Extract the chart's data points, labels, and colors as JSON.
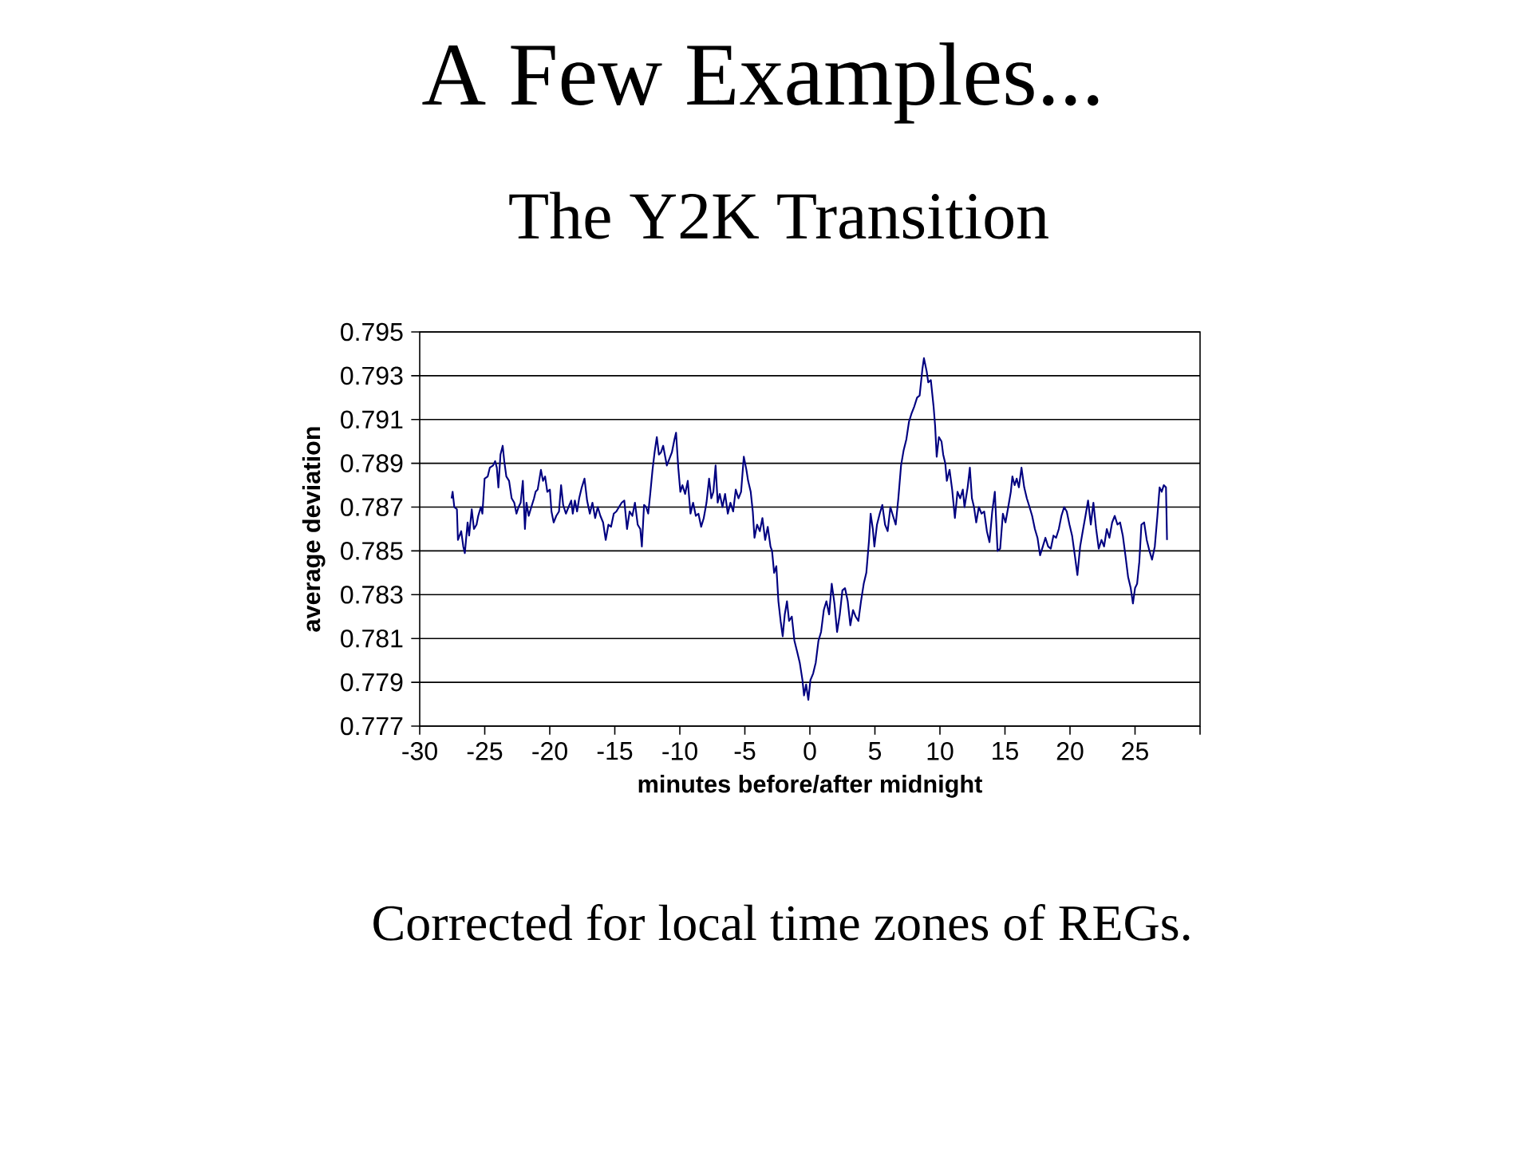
{
  "chart_data": {
    "type": "line",
    "title": "A Few Examples...",
    "subtitle": "The Y2K Transition",
    "xlabel": "minutes before/after midnight",
    "ylabel": "average deviation",
    "annotations": [
      "Corrected for local time zones of REGs."
    ],
    "color": "#000080",
    "grid": "y",
    "xlim": [
      -30,
      30
    ],
    "xticks": [
      -30,
      -25,
      -20,
      -15,
      -10,
      -5,
      0,
      5,
      10,
      15,
      20,
      25,
      {
        "value": 30,
        "label": null
      }
    ],
    "ylim": [
      0.777,
      0.795
    ],
    "yticks": [
      0.777,
      0.779,
      0.781,
      0.783,
      0.785,
      0.787,
      0.789,
      0.791,
      0.793,
      0.795
    ],
    "x": [
      -27.55,
      -27.47,
      -27.34,
      -27.14,
      -27.06,
      -26.81,
      -26.65,
      -26.53,
      -26.32,
      -26.2,
      -26.0,
      -25.83,
      -25.63,
      -25.5,
      -25.3,
      -25.18,
      -25.01,
      -24.77,
      -24.61,
      -24.36,
      -24.2,
      -24.07,
      -23.95,
      -23.79,
      -23.62,
      -23.5,
      -23.34,
      -23.13,
      -22.93,
      -22.73,
      -22.56,
      -22.4,
      -22.24,
      -22.07,
      -21.91,
      -21.79,
      -21.62,
      -21.42,
      -21.21,
      -21.09,
      -20.93,
      -20.68,
      -20.52,
      -20.36,
      -20.19,
      -19.99,
      -19.87,
      -19.7,
      -19.5,
      -19.29,
      -19.13,
      -18.97,
      -18.76,
      -18.56,
      -18.35,
      -18.23,
      -18.07,
      -17.9,
      -17.74,
      -17.54,
      -17.33,
      -17.13,
      -16.92,
      -16.72,
      -16.51,
      -16.31,
      -16.11,
      -15.9,
      -15.7,
      -15.49,
      -15.29,
      -15.08,
      -14.88,
      -14.68,
      -14.47,
      -14.27,
      -14.06,
      -13.86,
      -13.65,
      -13.45,
      -13.24,
      -13.04,
      -12.92,
      -12.75,
      -12.59,
      -12.43,
      -12.26,
      -12.1,
      -11.94,
      -11.77,
      -11.61,
      -11.45,
      -11.28,
      -11.0,
      -10.61,
      -10.41,
      -10.29,
      -10.12,
      -9.96,
      -9.8,
      -9.59,
      -9.39,
      -9.18,
      -8.98,
      -8.77,
      -8.57,
      -8.36,
      -8.16,
      -7.95,
      -7.75,
      -7.58,
      -7.42,
      -7.25,
      -7.09,
      -6.93,
      -6.72,
      -6.52,
      -6.31,
      -6.11,
      -5.9,
      -5.7,
      -5.49,
      -5.29,
      -5.08,
      -4.88,
      -4.75,
      -4.55,
      -4.39,
      -4.26,
      -4.06,
      -3.85,
      -3.65,
      -3.44,
      -3.24,
      -3.03,
      -2.91,
      -2.75,
      -2.58,
      -2.42,
      -2.25,
      -2.09,
      -1.93,
      -1.76,
      -1.6,
      -1.39,
      -1.19,
      -0.98,
      -0.78,
      -0.57,
      -0.45,
      -0.29,
      -0.12,
      0.04,
      0.25,
      0.45,
      0.66,
      0.86,
      1.07,
      1.27,
      1.48,
      1.68,
      1.89,
      2.09,
      2.3,
      2.5,
      2.7,
      2.91,
      3.11,
      3.32,
      3.52,
      3.73,
      3.93,
      4.14,
      4.34,
      4.55,
      4.67,
      4.84,
      4.96,
      5.16,
      5.37,
      5.57,
      5.78,
      5.98,
      6.19,
      6.39,
      6.6,
      6.8,
      7.01,
      7.21,
      7.42,
      7.62,
      7.83,
      8.03,
      8.24,
      8.44,
      8.65,
      8.77,
      8.98,
      9.1,
      9.3,
      9.51,
      9.63,
      9.75,
      9.92,
      10.12,
      10.25,
      10.41,
      10.53,
      10.74,
      10.94,
      11.15,
      11.35,
      11.56,
      11.76,
      11.89,
      12.13,
      12.3,
      12.46,
      12.62,
      12.79,
      12.99,
      13.2,
      13.4,
      13.61,
      13.81,
      14.02,
      14.22,
      14.43,
      14.63,
      14.84,
      15.04,
      15.25,
      15.45,
      15.57,
      15.74,
      15.9,
      16.07,
      16.27,
      16.48,
      16.68,
      16.89,
      17.09,
      17.3,
      17.5,
      17.7,
      17.91,
      18.11,
      18.32,
      18.52,
      18.73,
      18.93,
      19.14,
      19.34,
      19.55,
      19.75,
      19.96,
      20.16,
      20.37,
      20.57,
      20.78,
      20.98,
      21.19,
      21.39,
      21.6,
      21.8,
      22.01,
      22.21,
      22.42,
      22.62,
      22.83,
      23.03,
      23.24,
      23.44,
      23.65,
      23.85,
      24.06,
      24.26,
      24.47,
      24.67,
      24.84,
      25.0,
      25.16,
      25.33,
      25.49,
      25.7,
      25.9,
      26.11,
      26.31,
      26.52,
      26.72,
      26.89,
      27.05,
      27.21,
      27.38,
      27.46
    ],
    "values": [
      0.7874,
      0.7877,
      0.787,
      0.7869,
      0.7855,
      0.7859,
      0.7852,
      0.7849,
      0.7863,
      0.7857,
      0.7869,
      0.786,
      0.7862,
      0.7866,
      0.787,
      0.7867,
      0.7883,
      0.7884,
      0.7888,
      0.7889,
      0.7891,
      0.7888,
      0.7879,
      0.7894,
      0.7898,
      0.7891,
      0.7884,
      0.7882,
      0.7874,
      0.7872,
      0.7867,
      0.787,
      0.7872,
      0.7882,
      0.786,
      0.7872,
      0.7866,
      0.787,
      0.7874,
      0.7877,
      0.7878,
      0.7887,
      0.7882,
      0.7884,
      0.7877,
      0.7878,
      0.7868,
      0.7863,
      0.7866,
      0.7868,
      0.788,
      0.7871,
      0.7867,
      0.787,
      0.7873,
      0.7867,
      0.7873,
      0.7868,
      0.7874,
      0.7879,
      0.7883,
      0.7873,
      0.7867,
      0.7872,
      0.7865,
      0.787,
      0.7866,
      0.7863,
      0.7855,
      0.7862,
      0.7861,
      0.7867,
      0.7868,
      0.787,
      0.7872,
      0.7873,
      0.786,
      0.7868,
      0.7866,
      0.7872,
      0.7862,
      0.786,
      0.7852,
      0.7871,
      0.787,
      0.7867,
      0.7877,
      0.7887,
      0.7895,
      0.7902,
      0.7894,
      0.7895,
      0.7898,
      0.7889,
      0.7895,
      0.7901,
      0.7904,
      0.7888,
      0.7877,
      0.788,
      0.7876,
      0.7882,
      0.7867,
      0.7872,
      0.7866,
      0.7867,
      0.7861,
      0.7865,
      0.7872,
      0.7883,
      0.7874,
      0.7877,
      0.7889,
      0.7872,
      0.7876,
      0.787,
      0.7876,
      0.7867,
      0.7872,
      0.7868,
      0.7878,
      0.7874,
      0.7877,
      0.7893,
      0.7887,
      0.7882,
      0.7877,
      0.7868,
      0.7856,
      0.7862,
      0.7859,
      0.7865,
      0.7855,
      0.7861,
      0.7852,
      0.785,
      0.784,
      0.7843,
      0.7827,
      0.7818,
      0.7811,
      0.7821,
      0.7827,
      0.7818,
      0.782,
      0.7809,
      0.7804,
      0.7799,
      0.7791,
      0.7784,
      0.7789,
      0.7782,
      0.7791,
      0.7794,
      0.7799,
      0.7809,
      0.7813,
      0.7823,
      0.7827,
      0.7821,
      0.7835,
      0.7826,
      0.7813,
      0.7821,
      0.7832,
      0.7833,
      0.7827,
      0.7816,
      0.7823,
      0.782,
      0.7818,
      0.7827,
      0.7835,
      0.784,
      0.7855,
      0.7867,
      0.786,
      0.7852,
      0.7862,
      0.7867,
      0.7871,
      0.7862,
      0.7859,
      0.787,
      0.7866,
      0.7862,
      0.7874,
      0.7889,
      0.7896,
      0.7901,
      0.7909,
      0.7913,
      0.7916,
      0.792,
      0.7921,
      0.7933,
      0.7938,
      0.7932,
      0.7927,
      0.7928,
      0.7916,
      0.7907,
      0.7893,
      0.7902,
      0.79,
      0.7894,
      0.789,
      0.7882,
      0.7887,
      0.7878,
      0.7865,
      0.7877,
      0.7874,
      0.7878,
      0.787,
      0.7879,
      0.7888,
      0.7874,
      0.787,
      0.7863,
      0.787,
      0.7867,
      0.7868,
      0.7859,
      0.7854,
      0.7868,
      0.7877,
      0.785,
      0.7851,
      0.7867,
      0.7863,
      0.787,
      0.7877,
      0.7884,
      0.788,
      0.7883,
      0.7879,
      0.7888,
      0.7879,
      0.7874,
      0.787,
      0.7866,
      0.786,
      0.7856,
      0.7848,
      0.7852,
      0.7856,
      0.7852,
      0.7851,
      0.7857,
      0.7856,
      0.786,
      0.7866,
      0.787,
      0.7868,
      0.7862,
      0.7857,
      0.7848,
      0.7839,
      0.7852,
      0.7859,
      0.7866,
      0.7873,
      0.7862,
      0.7872,
      0.786,
      0.7851,
      0.7855,
      0.7852,
      0.786,
      0.7856,
      0.7863,
      0.7866,
      0.7862,
      0.7863,
      0.7857,
      0.7848,
      0.7838,
      0.7833,
      0.7826,
      0.7833,
      0.7835,
      0.7845,
      0.7862,
      0.7863,
      0.7855,
      0.785,
      0.7846,
      0.7852,
      0.7866,
      0.7879,
      0.7877,
      0.788,
      0.7879,
      0.7855
    ]
  }
}
